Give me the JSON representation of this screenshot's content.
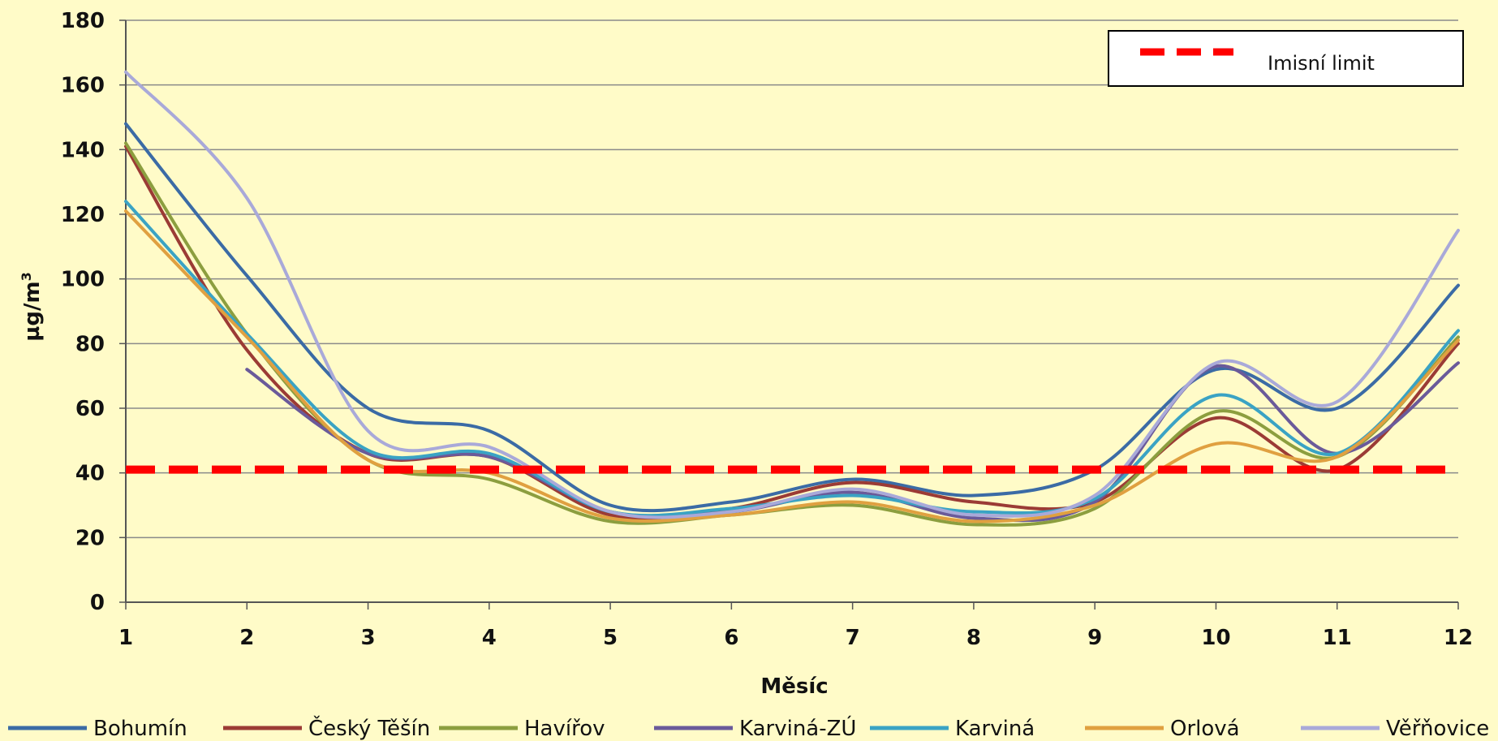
{
  "chart_data": {
    "type": "line",
    "title": "",
    "xlabel": "Měsíc",
    "ylabel": "µg/m³",
    "ylabel_base": "µg/m",
    "ylabel_sup": "3",
    "x": [
      1,
      2,
      3,
      4,
      5,
      6,
      7,
      8,
      9,
      10,
      11,
      12
    ],
    "xlim": [
      1,
      12
    ],
    "ylim": [
      0,
      180
    ],
    "yticks": [
      0,
      20,
      40,
      60,
      80,
      100,
      120,
      140,
      160,
      180
    ],
    "grid": true,
    "legend_position": "bottom",
    "series": [
      {
        "name": "Bohumín",
        "color": "#3B6BA5",
        "values": [
          148,
          101,
          60,
          53,
          30,
          31,
          38,
          33,
          41,
          72,
          60,
          98
        ]
      },
      {
        "name": "Český Těšín",
        "color": "#9B3B35",
        "values": [
          141,
          78,
          46,
          45,
          27,
          29,
          37,
          31,
          31,
          57,
          41,
          80
        ]
      },
      {
        "name": "Havířov",
        "color": "#8C9E3F",
        "values": [
          142,
          83,
          44,
          38,
          25,
          27,
          30,
          24,
          29,
          59,
          45,
          82
        ]
      },
      {
        "name": "Karviná-ZÚ",
        "color": "#6A5A9A",
        "values": [
          null,
          72,
          46,
          45,
          28,
          28,
          34,
          26,
          31,
          73,
          46,
          74
        ]
      },
      {
        "name": "Karviná",
        "color": "#3AA3C4",
        "values": [
          124,
          83,
          47,
          46,
          28,
          29,
          33,
          28,
          32,
          64,
          46,
          84
        ]
      },
      {
        "name": "Orlová",
        "color": "#E0A040",
        "values": [
          121,
          82,
          44,
          40,
          26,
          27,
          31,
          25,
          30,
          49,
          45,
          81
        ]
      },
      {
        "name": "Věřňovice",
        "color": "#A9A9D9",
        "values": [
          164,
          125,
          53,
          48,
          28,
          28,
          35,
          27,
          33,
          74,
          62,
          115
        ]
      }
    ],
    "limit": {
      "name": "Imisní limit",
      "value": 41,
      "color": "#FF0000"
    }
  }
}
